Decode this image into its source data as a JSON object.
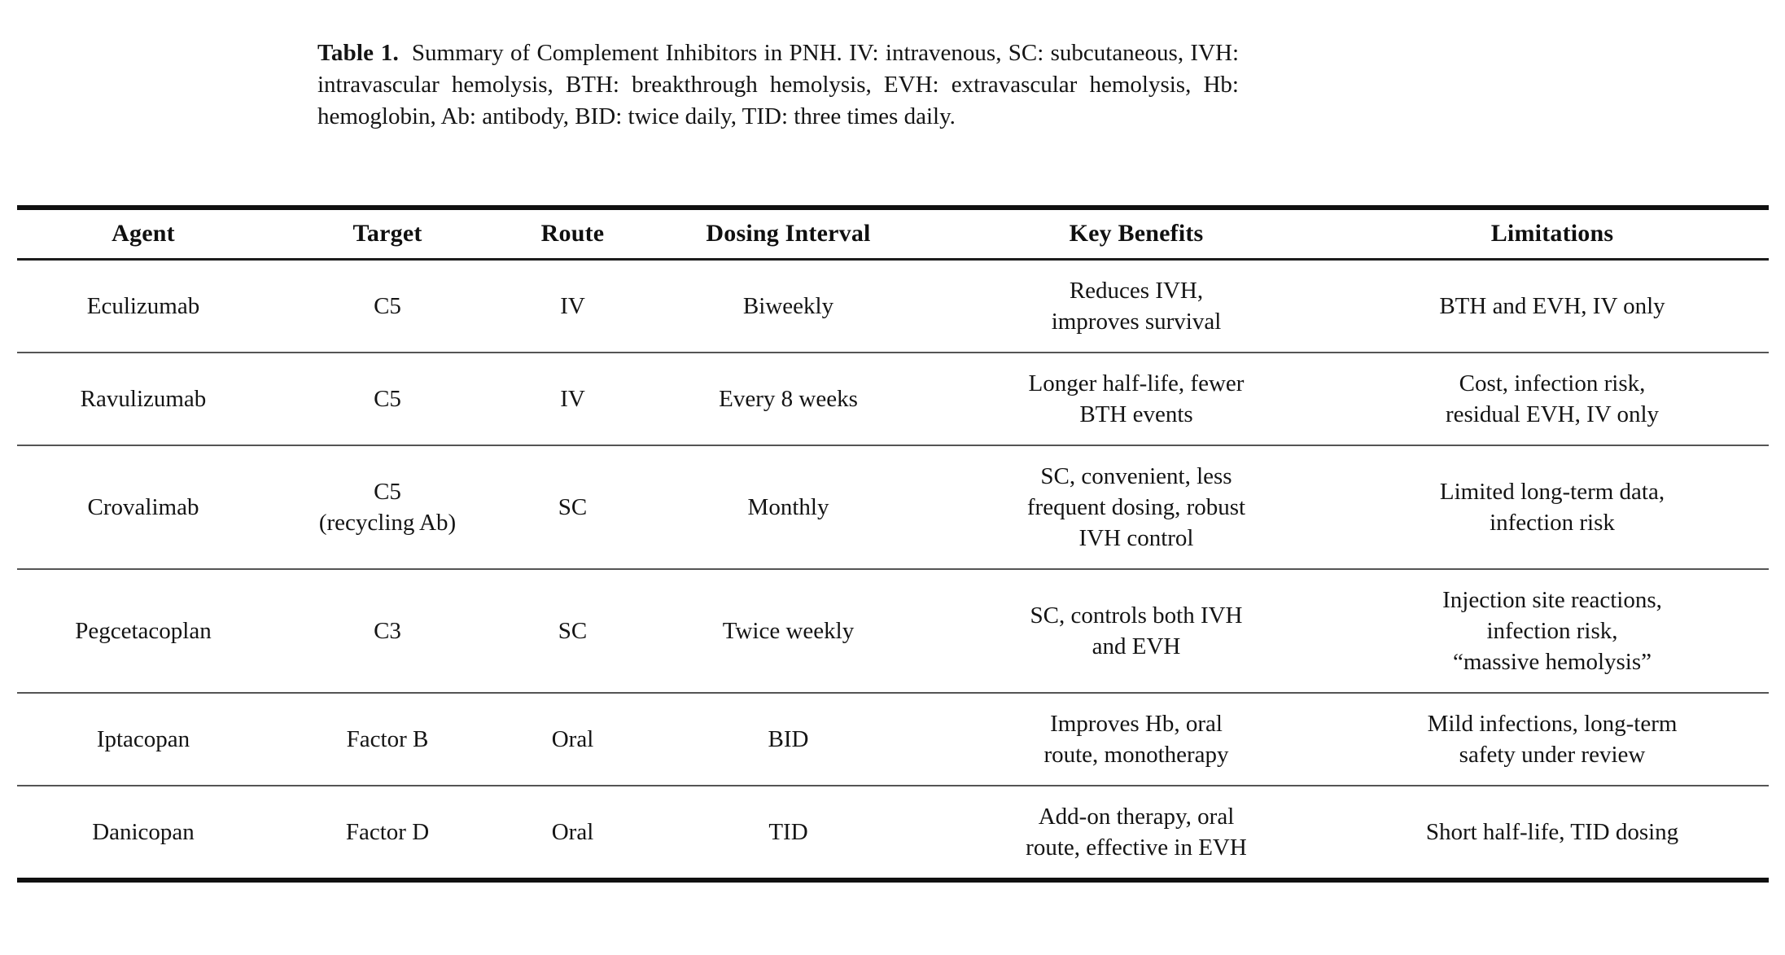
{
  "caption": {
    "label": "Table 1.",
    "text": "Summary of Complement Inhibitors in PNH. IV: intravenous, SC: subcutaneous, IVH: intravascular hemolysis, BTH: breakthrough hemolysis, EVH: extravascular hemolysis, Hb: hemoglobin, Ab: antibody, BID: twice daily, TID: three times daily."
  },
  "table": {
    "columns": [
      "Agent",
      "Target",
      "Route",
      "Dosing Interval",
      "Key Benefits",
      "Limitations"
    ],
    "rows": [
      {
        "agent": "Eculizumab",
        "target": "C5",
        "route": "IV",
        "dosing_interval": "Biweekly",
        "key_benefits": "Reduces IVH,\nimproves survival",
        "limitations": "BTH and EVH, IV only"
      },
      {
        "agent": "Ravulizumab",
        "target": "C5",
        "route": "IV",
        "dosing_interval": "Every 8 weeks",
        "key_benefits": "Longer half-life, fewer\nBTH events",
        "limitations": "Cost, infection risk,\nresidual EVH, IV only"
      },
      {
        "agent": "Crovalimab",
        "target": "C5\n(recycling Ab)",
        "route": "SC",
        "dosing_interval": "Monthly",
        "key_benefits": "SC, convenient, less\nfrequent dosing, robust\nIVH control",
        "limitations": "Limited long-term data,\ninfection risk"
      },
      {
        "agent": "Pegcetacoplan",
        "target": "C3",
        "route": "SC",
        "dosing_interval": "Twice weekly",
        "key_benefits": "SC, controls both IVH\nand EVH",
        "limitations": "Injection site reactions,\ninfection risk,\n“massive hemolysis”"
      },
      {
        "agent": "Iptacopan",
        "target": "Factor B",
        "route": "Oral",
        "dosing_interval": "BID",
        "key_benefits": "Improves Hb, oral\nroute, monotherapy",
        "limitations": "Mild infections, long-term\nsafety under review"
      },
      {
        "agent": "Danicopan",
        "target": "Factor D",
        "route": "Oral",
        "dosing_interval": "TID",
        "key_benefits": "Add-on therapy, oral\nroute, effective in EVH",
        "limitations": "Short half-life, TID dosing"
      }
    ]
  }
}
